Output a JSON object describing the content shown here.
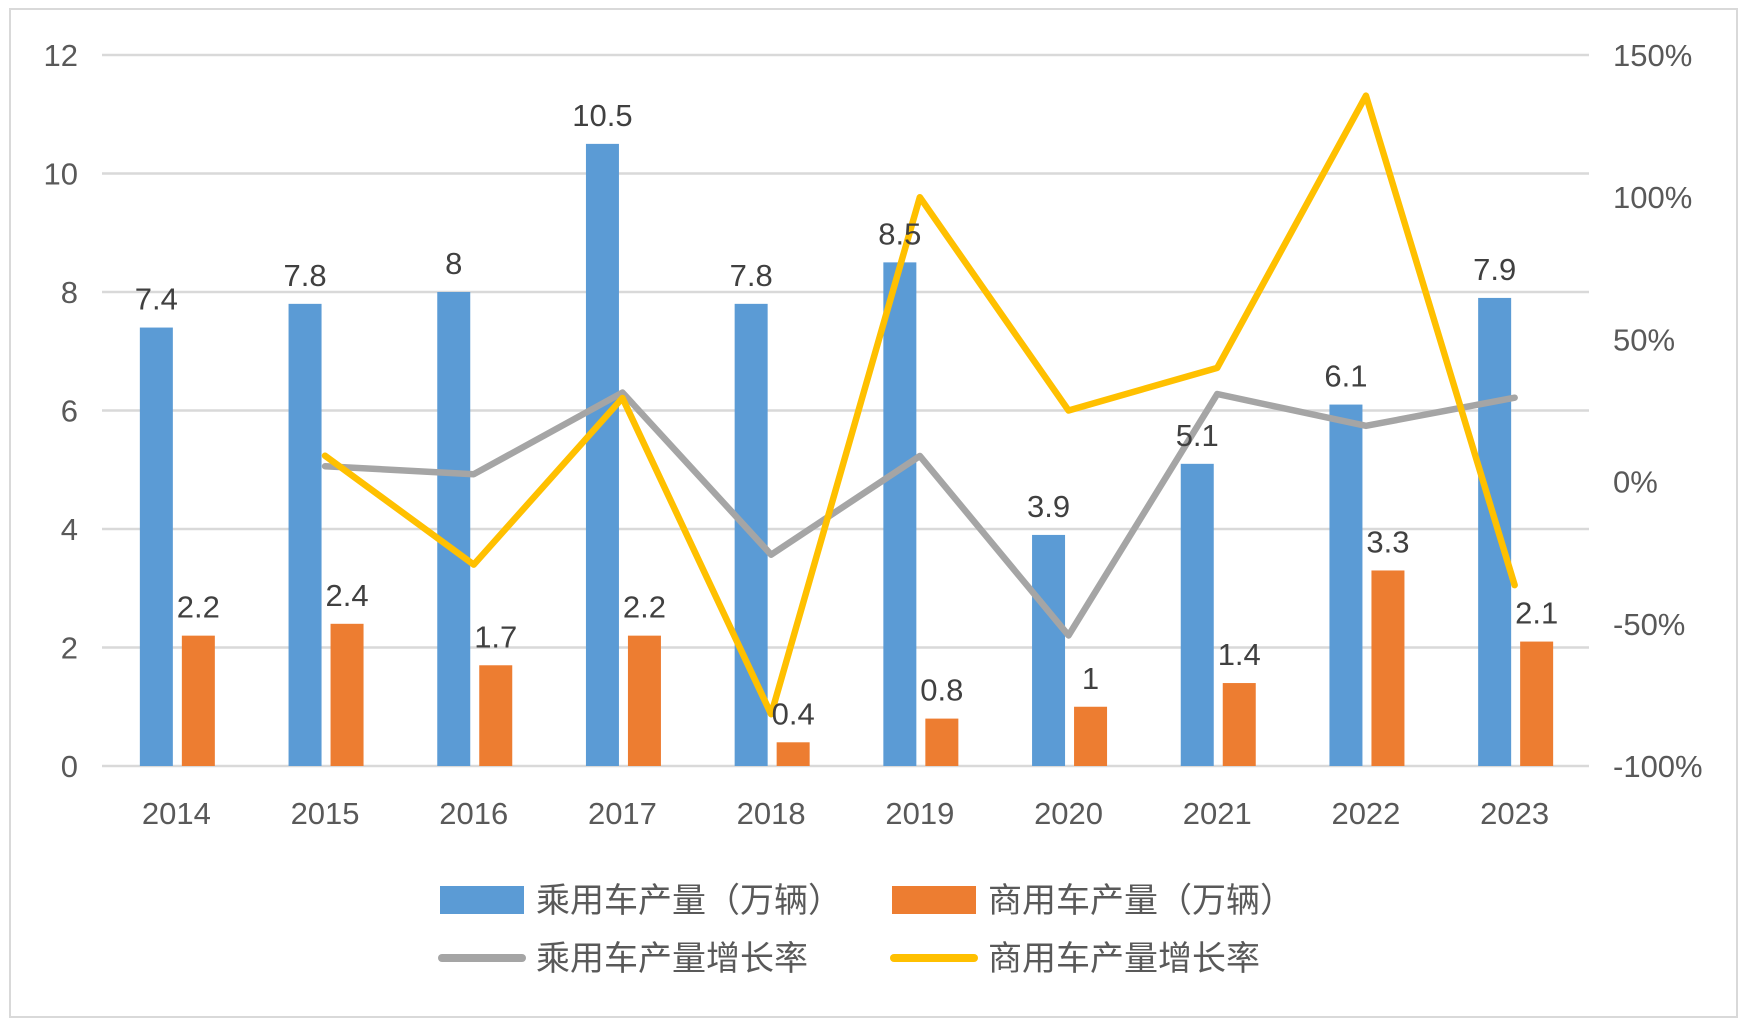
{
  "chart_data": {
    "type": "bar",
    "categories": [
      "2014",
      "2015",
      "2016",
      "2017",
      "2018",
      "2019",
      "2020",
      "2021",
      "2022",
      "2023"
    ],
    "series": [
      {
        "name": "乘用车产量（万辆）",
        "type": "bar",
        "axis": "left",
        "color": "#5B9BD5",
        "values": [
          7.4,
          7.8,
          8,
          10.5,
          7.8,
          8.5,
          3.9,
          5.1,
          6.1,
          7.9
        ],
        "labels": [
          "7.4",
          "7.8",
          "8",
          "10.5",
          "7.8",
          "8.5",
          "3.9",
          "5.1",
          "6.1",
          "7.9"
        ]
      },
      {
        "name": "商用车产量（万辆）",
        "type": "bar",
        "axis": "left",
        "color": "#ED7D31",
        "values": [
          2.2,
          2.4,
          1.7,
          2.2,
          0.4,
          0.8,
          1,
          1.4,
          3.3,
          2.1
        ],
        "labels": [
          "2.2",
          "2.4",
          "1.7",
          "2.2",
          "0.4",
          "0.8",
          "1",
          "1.4",
          "3.3",
          "2.1"
        ]
      },
      {
        "name": "乘用车产量增长率",
        "type": "line",
        "axis": "right",
        "color": "#A5A5A5",
        "values": [
          null,
          5.4,
          2.6,
          31.3,
          -25.7,
          9.0,
          -54.1,
          30.8,
          19.6,
          29.5
        ]
      },
      {
        "name": "商用车产量增长率",
        "type": "line",
        "axis": "right",
        "color": "#FFC000",
        "values": [
          null,
          9.1,
          -29.2,
          29.4,
          -81.8,
          100,
          25,
          40,
          135.7,
          -36.4
        ]
      }
    ],
    "left_axis": {
      "ylim": [
        0,
        12
      ],
      "ticks": [
        "0",
        "2",
        "4",
        "6",
        "8",
        "10",
        "12"
      ]
    },
    "right_axis": {
      "ylim": [
        -100,
        150
      ],
      "unit": "%",
      "ticks": [
        "-100%",
        "-50%",
        "0%",
        "50%",
        "100%",
        "150%"
      ]
    },
    "grid": true,
    "legend_position": "bottom"
  }
}
